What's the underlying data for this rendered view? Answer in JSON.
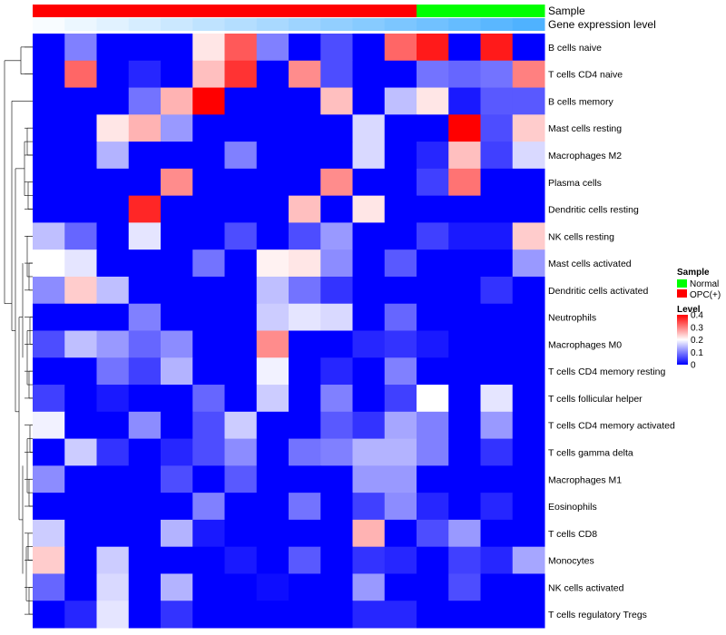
{
  "chart_data": {
    "type": "heatmap",
    "title": "",
    "annotation_labels": {
      "sample": "Sample",
      "expression": "Gene expression level"
    },
    "sample_groups": [
      "OPC(+)",
      "OPC(+)",
      "OPC(+)",
      "OPC(+)",
      "OPC(+)",
      "OPC(+)",
      "OPC(+)",
      "OPC(+)",
      "OPC(+)",
      "OPC(+)",
      "OPC(+)",
      "OPC(+)",
      "Normal",
      "Normal",
      "Normal",
      "Normal"
    ],
    "expression_gradient": [
      0.02,
      0.05,
      0.08,
      0.11,
      0.14,
      0.17,
      0.2,
      0.23,
      0.26,
      0.29,
      0.32,
      0.35,
      0.38,
      0.41,
      0.44,
      0.47
    ],
    "rows": [
      "B cells naive",
      "T cells CD4 naive",
      "B cells memory",
      "Mast cells resting",
      "Macrophages M2",
      "Plasma cells",
      "Dendritic cells resting",
      "NK cells resting",
      "Mast cells activated",
      "Dendritic cells activated",
      "Neutrophils",
      "Macrophages M0",
      "T cells CD4 memory resting",
      "T cells follicular helper",
      "T cells CD4 memory activated",
      "T cells gamma delta",
      "Macrophages M1",
      "Eosinophils",
      "T cells CD8",
      "Monocytes",
      "NK cells activated",
      "T cells regulatory  Tregs"
    ],
    "values": [
      [
        0,
        0.1,
        0,
        0,
        0,
        0.22,
        0.33,
        0.1,
        0,
        0.06,
        0,
        0.32,
        0.38,
        0,
        0.38,
        0
      ],
      [
        0,
        0.32,
        0,
        0.03,
        0,
        0.25,
        0.36,
        0,
        0.29,
        0.06,
        0,
        0,
        0.09,
        0.08,
        0.09,
        0.3
      ],
      [
        0,
        0,
        0,
        0.09,
        0.26,
        0.4,
        0,
        0,
        0,
        0.25,
        0,
        0.15,
        0.22,
        0.02,
        0.07,
        0.07
      ],
      [
        0,
        0,
        0.22,
        0.26,
        0.12,
        0,
        0,
        0,
        0,
        0,
        0.17,
        0,
        0,
        0.4,
        0.06,
        0.24
      ],
      [
        0,
        0,
        0.14,
        0,
        0,
        0,
        0.1,
        0,
        0,
        0,
        0.17,
        0,
        0.03,
        0.25,
        0.05,
        0.17
      ],
      [
        0,
        0,
        0,
        0,
        0.29,
        0,
        0,
        0,
        0,
        0.29,
        0,
        0,
        0.05,
        0.31,
        0,
        0
      ],
      [
        0,
        0,
        0,
        0.37,
        0,
        0,
        0,
        0,
        0.25,
        0,
        0.22,
        0,
        0,
        0,
        0,
        0
      ],
      [
        0.15,
        0.08,
        0,
        0.18,
        0,
        0,
        0.06,
        0,
        0.06,
        0.12,
        0,
        0,
        0.05,
        0.02,
        0.02,
        0.24
      ],
      [
        0.2,
        0.18,
        0,
        0,
        0,
        0.09,
        0,
        0.21,
        0.22,
        0.11,
        0,
        0.07,
        0,
        0,
        0,
        0.12
      ],
      [
        0.11,
        0.24,
        0.15,
        0,
        0,
        0,
        0,
        0.15,
        0.09,
        0.04,
        0,
        0,
        0,
        0,
        0.04,
        0
      ],
      [
        0,
        0,
        0,
        0.1,
        0,
        0,
        0,
        0.16,
        0.18,
        0.17,
        0,
        0.08,
        0,
        0,
        0,
        0
      ],
      [
        0.06,
        0.15,
        0.12,
        0.08,
        0.11,
        0,
        0,
        0.29,
        0,
        0,
        0.03,
        0.04,
        0.02,
        0,
        0,
        0
      ],
      [
        0,
        0,
        0.09,
        0.05,
        0.14,
        0,
        0,
        0.19,
        0,
        0.03,
        0,
        0.1,
        0,
        0,
        0,
        0
      ],
      [
        0.05,
        0,
        0.02,
        0,
        0,
        0.08,
        0,
        0.16,
        0,
        0.1,
        0,
        0.05,
        0.2,
        0,
        0.18,
        0
      ],
      [
        0.19,
        0,
        0,
        0.11,
        0,
        0.06,
        0.16,
        0,
        0,
        0.07,
        0.04,
        0.13,
        0.1,
        0,
        0.12,
        0
      ],
      [
        0,
        0.16,
        0.04,
        0,
        0.03,
        0.06,
        0.11,
        0,
        0.09,
        0.1,
        0.14,
        0.14,
        0.1,
        0,
        0.04,
        0
      ],
      [
        0.11,
        0,
        0,
        0,
        0.06,
        0,
        0.07,
        0,
        0,
        0,
        0.12,
        0.12,
        0,
        0,
        0,
        0
      ],
      [
        0,
        0,
        0,
        0,
        0,
        0.1,
        0,
        0,
        0.09,
        0,
        0.05,
        0.11,
        0.03,
        0,
        0.03,
        0
      ],
      [
        0.16,
        0,
        0,
        0,
        0.14,
        0.02,
        0,
        0,
        0,
        0,
        0.26,
        0,
        0.06,
        0.12,
        0,
        0
      ],
      [
        0.24,
        0,
        0.16,
        0,
        0,
        0,
        0.02,
        0,
        0.07,
        0,
        0.04,
        0.03,
        0,
        0.05,
        0.03,
        0.13
      ],
      [
        0.08,
        0,
        0.17,
        0,
        0.14,
        0,
        0,
        0.01,
        0,
        0,
        0.12,
        0,
        0,
        0.06,
        0,
        0
      ],
      [
        0,
        0.03,
        0.18,
        0,
        0.04,
        0,
        0,
        0,
        0,
        0,
        0.03,
        0.03,
        0,
        0,
        0,
        0
      ]
    ],
    "colorscale": {
      "low": "#0000ff",
      "mid": "#ffffff",
      "high": "#ff0000",
      "min": 0,
      "max": 0.4
    },
    "legend_sample": {
      "title": "Sample",
      "items": [
        {
          "label": "Normal",
          "color": "#00ff00"
        },
        {
          "label": "OPC(+)",
          "color": "#ff0000"
        }
      ]
    },
    "legend_level": {
      "title": "Level",
      "ticks": [
        "0.4",
        "0.3",
        "0.2",
        "0.1",
        "0"
      ],
      "tick_values": [
        0.4,
        0.3,
        0.2,
        0.1,
        0
      ]
    },
    "expression_colorscale": {
      "low": "#ffffff",
      "high": "#4fb2ff"
    },
    "dendrogram": "row-clustering"
  }
}
